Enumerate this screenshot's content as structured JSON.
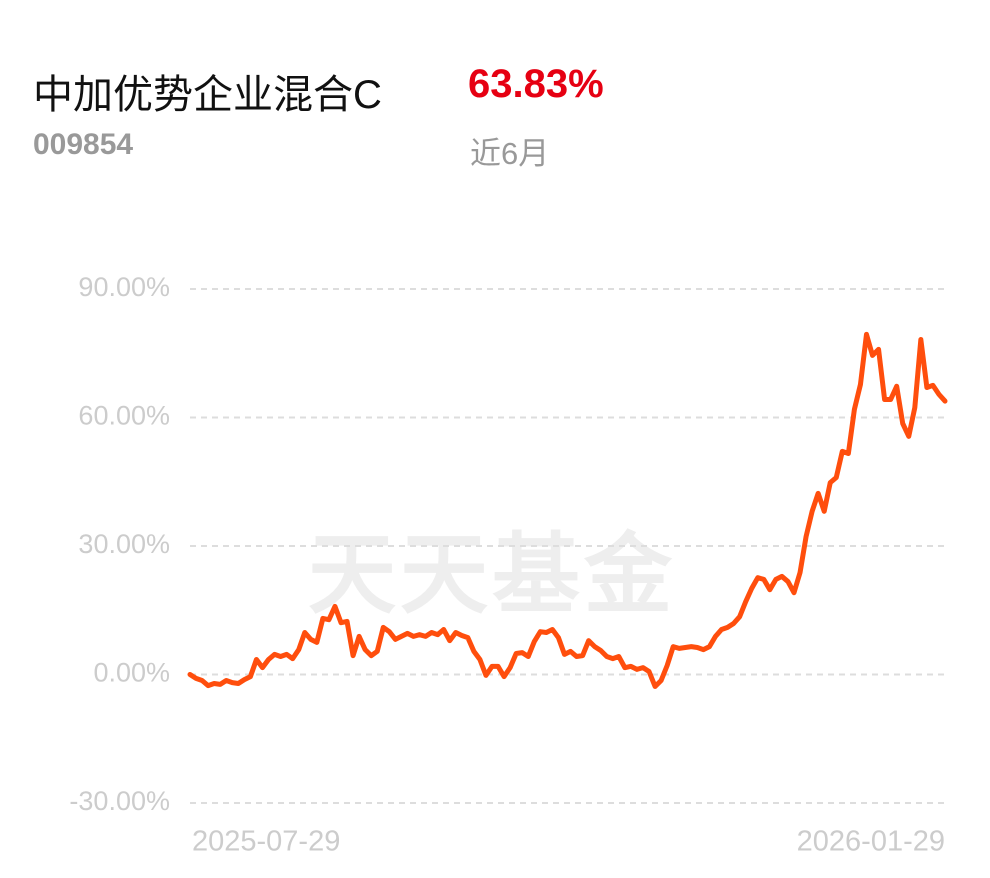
{
  "chart_data": {
    "type": "line",
    "title": "中加优势企业混合C",
    "period_return": "63.83%",
    "fund_code": "009854",
    "period": "近6月",
    "watermark": "天天基金",
    "categories": [
      "2025-07-29",
      null,
      null,
      null,
      null,
      null,
      null,
      null,
      null,
      null,
      null,
      null,
      null,
      null,
      null,
      null,
      null,
      null,
      null,
      null,
      null,
      null,
      null,
      null,
      null,
      null,
      null,
      null,
      null,
      null,
      null,
      null,
      null,
      null,
      null,
      null,
      null,
      null,
      null,
      null,
      null,
      null,
      null,
      null,
      null,
      null,
      null,
      null,
      null,
      null,
      null,
      null,
      null,
      null,
      null,
      null,
      null,
      null,
      null,
      null,
      null,
      null,
      null,
      null,
      null,
      null,
      null,
      null,
      null,
      null,
      null,
      null,
      null,
      null,
      null,
      null,
      null,
      null,
      null,
      null,
      null,
      null,
      null,
      null,
      null,
      null,
      null,
      null,
      null,
      null,
      null,
      null,
      null,
      null,
      null,
      null,
      null,
      null,
      null,
      null,
      null,
      null,
      null,
      null,
      null,
      null,
      null,
      null,
      null,
      null,
      null,
      null,
      null,
      null,
      null,
      null,
      null,
      null,
      null,
      null,
      null,
      null,
      null,
      null,
      null,
      "2026-01-29"
    ],
    "series": [
      {
        "color": "#ff4e0d",
        "values": [
          0,
          -0.9,
          -1.4,
          -2.6,
          -2.1,
          -2.3,
          -1.4,
          -1.9,
          -2.1,
          -1.2,
          -0.5,
          3.5,
          1.6,
          3.5,
          4.7,
          4.2,
          4.7,
          3.7,
          5.8,
          9.8,
          8.2,
          7.5,
          13.1,
          12.8,
          15.9,
          12.1,
          12.4,
          4.4,
          8.9,
          5.8,
          4.4,
          5.4,
          11.0,
          10.0,
          8.2,
          8.9,
          9.6,
          8.9,
          9.3,
          8.9,
          9.8,
          9.3,
          10.5,
          7.9,
          9.8,
          9.1,
          8.6,
          5.4,
          3.5,
          -0.2,
          1.9,
          1.9,
          -0.5,
          1.6,
          4.9,
          5.1,
          4.2,
          7.7,
          10.0,
          9.8,
          10.5,
          8.6,
          4.7,
          5.4,
          4.2,
          4.4,
          7.9,
          6.5,
          5.6,
          4.2,
          3.7,
          4.2,
          1.6,
          1.9,
          1.2,
          1.6,
          0.7,
          -2.8,
          -1.4,
          2.1,
          6.5,
          6.1,
          6.3,
          6.5,
          6.3,
          5.8,
          6.5,
          8.9,
          10.5,
          11.0,
          11.9,
          13.5,
          17.0,
          20.1,
          22.6,
          22.2,
          19.8,
          22.2,
          22.9,
          21.7,
          19.1,
          23.8,
          32.2,
          38.1,
          42.3,
          38.1,
          44.8,
          46.0,
          52.1,
          51.6,
          61.9,
          67.7,
          79.4,
          74.5,
          75.9,
          64.2,
          64.2,
          67.3,
          58.6,
          55.6,
          62.3,
          78.2,
          67.0,
          67.5,
          65.4,
          63.83
        ]
      }
    ],
    "ylim": [
      -30,
      90
    ],
    "yticks": [
      {
        "value": -30,
        "label": "-30.00%"
      },
      {
        "value": 0,
        "label": "0.00%"
      },
      {
        "value": 30,
        "label": "30.00%"
      },
      {
        "value": 60,
        "label": "60.00%"
      },
      {
        "value": 90,
        "label": "90.00%"
      }
    ],
    "grid": true
  }
}
